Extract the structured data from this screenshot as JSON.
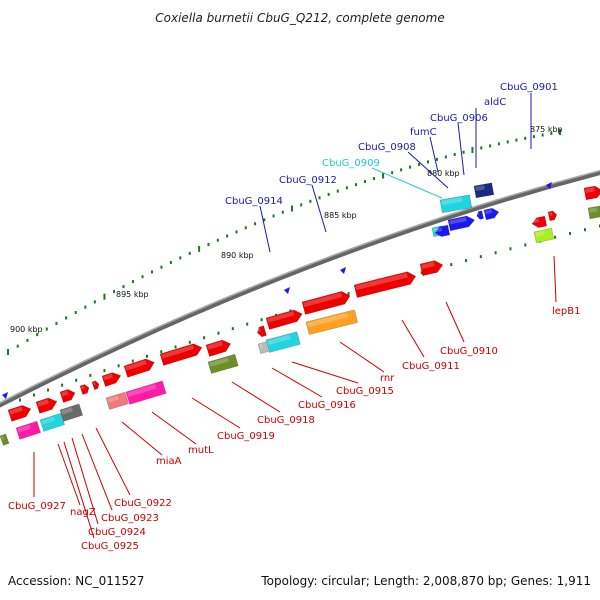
{
  "title": "Coxiella burnetii CbuG_Q212, complete genome",
  "footer": {
    "accession": "Accession: NC_011527",
    "summary": "Topology: circular; Length: 2,008,870 bp; Genes: 1,911"
  },
  "scale_labels": [
    "875 kbp",
    "880 kbp",
    "885 kbp",
    "890 kbp",
    "895 kbp",
    "900 kbp"
  ],
  "colors": {
    "backbone": "#777777",
    "red": "#ee0000",
    "blue": "#1a1aee",
    "navy": "#1a2a80",
    "cyan": "#22d3e0",
    "magenta": "#ff1aa8",
    "salmon": "#ee7a7a",
    "olive": "#6e8e2a",
    "lime": "#a8ee22",
    "orange": "#ffa020",
    "gray": "#6a6a6a",
    "lightgray": "#bbbbbb",
    "label_blue": "#1a1ab0",
    "label_red": "#cc0000",
    "label_cyan": "#22c8d6",
    "tick_green": "#1a7a1a"
  },
  "gene_labels_top": [
    {
      "text": "CbuG_0901",
      "color": "label_blue"
    },
    {
      "text": "aldC",
      "color": "label_blue"
    },
    {
      "text": "CbuG_0906",
      "color": "label_blue"
    },
    {
      "text": "fumC",
      "color": "label_blue"
    },
    {
      "text": "CbuG_0908",
      "color": "label_blue"
    },
    {
      "text": "CbuG_0909",
      "color": "label_cyan"
    },
    {
      "text": "CbuG_0912",
      "color": "label_blue"
    },
    {
      "text": "CbuG_0914",
      "color": "label_blue"
    }
  ],
  "gene_labels_bottom": [
    {
      "text": "lepB1",
      "color": "label_red"
    },
    {
      "text": "CbuG_0910",
      "color": "label_red"
    },
    {
      "text": "CbuG_0911",
      "color": "label_red"
    },
    {
      "text": "rnr",
      "color": "label_red"
    },
    {
      "text": "CbuG_0915",
      "color": "label_red"
    },
    {
      "text": "CbuG_0916",
      "color": "label_red"
    },
    {
      "text": "CbuG_0918",
      "color": "label_red"
    },
    {
      "text": "CbuG_0919",
      "color": "label_red"
    },
    {
      "text": "mutL",
      "color": "label_red"
    },
    {
      "text": "miaA",
      "color": "label_red"
    },
    {
      "text": "CbuG_0922",
      "color": "label_red"
    },
    {
      "text": "CbuG_0923",
      "color": "label_red"
    },
    {
      "text": "CbuG_0924",
      "color": "label_red"
    },
    {
      "text": "CbuG_0925",
      "color": "label_red"
    },
    {
      "text": "nagZ",
      "color": "label_red"
    },
    {
      "text": "CbuG_0927",
      "color": "label_red"
    }
  ]
}
